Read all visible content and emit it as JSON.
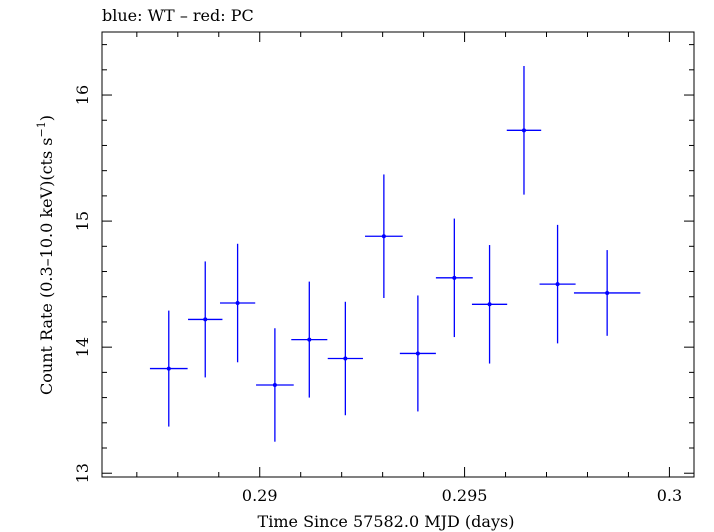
{
  "chart_data": {
    "type": "scatter",
    "title": "blue: WT – red: PC",
    "xlabel": "Time Since 57582.0 MJD (days)",
    "ylabel_main": "Count Rate (0.3–10.0 keV)(cts s",
    "ylabel_sup": "−1",
    "ylabel_close": ")",
    "xlim": [
      0.28615,
      0.3006
    ],
    "ylim": [
      12.97,
      16.5
    ],
    "xticks": [
      {
        "value": 0.29,
        "label": "0.29"
      },
      {
        "value": 0.295,
        "label": "0.295"
      },
      {
        "value": 0.3,
        "label": "0.3"
      }
    ],
    "yticks": [
      {
        "value": 13,
        "label": "13"
      },
      {
        "value": 14,
        "label": "14"
      },
      {
        "value": 15,
        "label": "15"
      },
      {
        "value": 16,
        "label": "16"
      }
    ],
    "x_minor_step": 0.001,
    "y_minor_step": 0.2,
    "grid": false,
    "series": [
      {
        "color": "#0000ff",
        "points": [
          {
            "x": 0.28778,
            "y": 13.83,
            "xerr": 0.00046,
            "yerr": 0.46
          },
          {
            "x": 0.28867,
            "y": 14.22,
            "xerr": 0.00042,
            "yerr": 0.46
          },
          {
            "x": 0.28946,
            "y": 14.35,
            "xerr": 0.00043,
            "yerr": 0.47
          },
          {
            "x": 0.29037,
            "y": 13.7,
            "xerr": 0.00046,
            "yerr": 0.45
          },
          {
            "x": 0.29121,
            "y": 14.06,
            "xerr": 0.00044,
            "yerr": 0.46
          },
          {
            "x": 0.29209,
            "y": 13.91,
            "xerr": 0.00043,
            "yerr": 0.45
          },
          {
            "x": 0.29303,
            "y": 14.88,
            "xerr": 0.00046,
            "yerr": 0.49
          },
          {
            "x": 0.29386,
            "y": 13.95,
            "xerr": 0.00044,
            "yerr": 0.46
          },
          {
            "x": 0.29475,
            "y": 14.55,
            "xerr": 0.00045,
            "yerr": 0.47
          },
          {
            "x": 0.29561,
            "y": 14.34,
            "xerr": 0.00043,
            "yerr": 0.47
          },
          {
            "x": 0.29645,
            "y": 15.72,
            "xerr": 0.00042,
            "yerr": 0.51
          },
          {
            "x": 0.29727,
            "y": 14.5,
            "xerr": 0.00044,
            "yerr": 0.47
          },
          {
            "x": 0.29848,
            "y": 14.43,
            "xerr": 0.00081,
            "yerr": 0.34
          }
        ]
      }
    ]
  }
}
